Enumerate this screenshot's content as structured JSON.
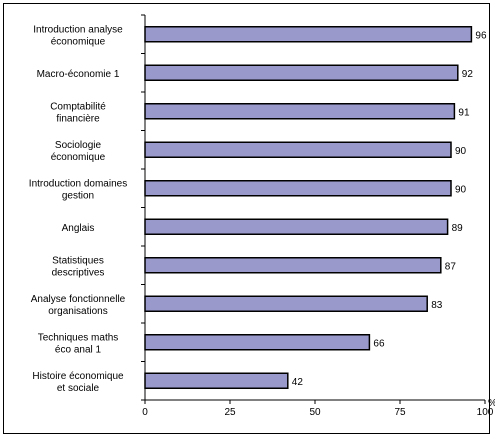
{
  "chart_data": {
    "type": "bar",
    "orientation": "horizontal",
    "categories": [
      [
        "Introduction analyse",
        "économique"
      ],
      [
        "Macro-économie 1"
      ],
      [
        "Comptabilité",
        "financière"
      ],
      [
        "Sociologie",
        "économique"
      ],
      [
        "Introduction domaines",
        "gestion"
      ],
      [
        "Anglais"
      ],
      [
        "Statistiques",
        "descriptives"
      ],
      [
        "Analyse fonctionnelle",
        "organisations"
      ],
      [
        "Techniques maths",
        "éco anal 1"
      ],
      [
        "Histoire économique",
        "et sociale"
      ]
    ],
    "values": [
      96,
      92,
      91,
      90,
      90,
      89,
      87,
      83,
      66,
      42
    ],
    "data_labels": [
      "96",
      "92",
      "91",
      "90",
      "90",
      "89",
      "87",
      "83",
      "66",
      "42"
    ],
    "xlim": [
      0,
      100
    ],
    "x_ticks": [
      "0",
      "25",
      "50",
      "75",
      "100"
    ],
    "x_tick_values": [
      0,
      25,
      50,
      75,
      100
    ],
    "x_unit": "%",
    "grid": false,
    "legend": "none",
    "colors": {
      "bar_fill": "#9999cc",
      "bar_stroke": "#000000"
    }
  }
}
